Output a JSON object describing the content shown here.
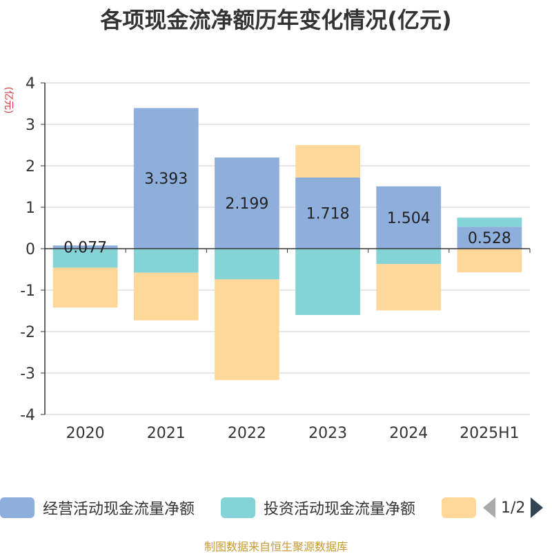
{
  "chart_data": {
    "type": "bar",
    "stacked": true,
    "title": "各项现金流净额历年变化情况(亿元)",
    "ylabel": "(亿元)",
    "xlabel": "",
    "categories": [
      "2020",
      "2021",
      "2022",
      "2023",
      "2024",
      "2025H1"
    ],
    "ylim": [
      -4,
      4
    ],
    "yticks": [
      4,
      3,
      2,
      1,
      0,
      -1,
      -2,
      -3,
      -4
    ],
    "grid": true,
    "series": [
      {
        "name": "经营活动现金流量净额",
        "color": "#8eaedb",
        "values": [
          0.077,
          3.393,
          2.199,
          1.718,
          1.504,
          0.528
        ],
        "labels": [
          "0.077",
          "3.393",
          "2.199",
          "1.718",
          "1.504",
          "0.528"
        ]
      },
      {
        "name": "投资活动现金流量净额",
        "color": "#84d3d6",
        "values": [
          -0.46,
          -0.58,
          -0.74,
          -1.6,
          -0.37,
          0.22
        ]
      },
      {
        "name": "",
        "color": "#ffd899",
        "values": [
          -0.96,
          -1.15,
          -2.43,
          0.78,
          -1.12,
          -0.57
        ]
      }
    ]
  },
  "legend": {
    "pager_text": "1/2"
  },
  "footer": {
    "source": "制图数据来自恒生聚源数据库"
  }
}
